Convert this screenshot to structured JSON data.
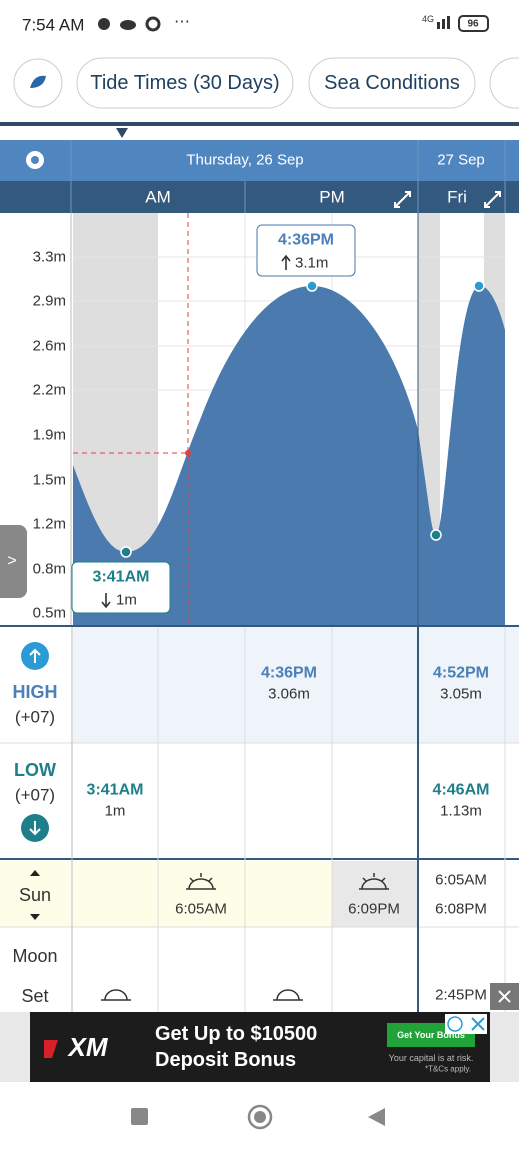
{
  "status_bar": {
    "time": "7:54 AM",
    "network": "4G",
    "battery": "96"
  },
  "tabs": [
    "Tide Times (30 Days)",
    "Sea Conditions"
  ],
  "date_header": {
    "day1": "Thursday, 26 Sep",
    "day2": "27 Sep"
  },
  "periods": [
    "AM",
    "PM",
    "Fri"
  ],
  "y_axis_labels": [
    "3.3m",
    "2.9m",
    "2.6m",
    "2.2m",
    "1.9m",
    "1.5m",
    "1.2m",
    "0.8m",
    "0.5m"
  ],
  "callouts": [
    {
      "time": "4:36PM",
      "height": "3.1m"
    },
    {
      "time": "3:41AM",
      "height": "1m"
    }
  ],
  "tide_table": {
    "high": {
      "label": "HIGH",
      "offset": "(+07)",
      "entries": [
        {
          "time": "4:36PM",
          "height": "3.06m"
        },
        {
          "time": "4:52PM",
          "height": "3.05m"
        }
      ]
    },
    "low": {
      "label": "LOW",
      "offset": "(+07)",
      "entries": [
        {
          "time": "3:41AM",
          "height": "1m"
        },
        {
          "time": "4:46AM",
          "height": "1.13m"
        }
      ]
    }
  },
  "sun": {
    "label": "Sun",
    "rise1": "6:05AM",
    "set1": "6:09PM",
    "rise2": "6:05AM",
    "set2": "6:08PM"
  },
  "moon": {
    "label": "Moon",
    "event": "Set",
    "time2": "2:45PM"
  },
  "ad": {
    "brand": "XM",
    "headline": "Get Up to $10500",
    "subline": "Deposit Bonus",
    "button": "Get Your Bonus",
    "disclaimer1": "Your capital is at risk.",
    "disclaimer2": "*T&Cs apply."
  }
}
